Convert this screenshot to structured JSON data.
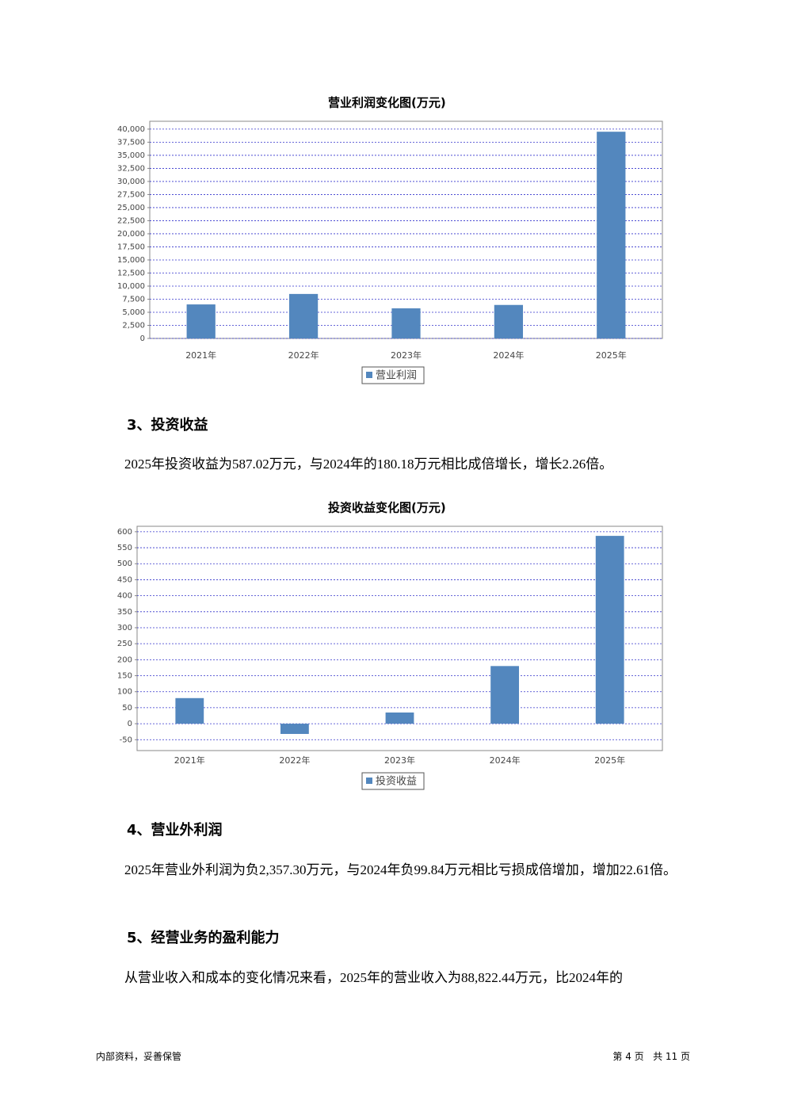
{
  "chart_data": [
    {
      "type": "bar",
      "title": "营业利润变化图(万元)",
      "categories": [
        "2021年",
        "2022年",
        "2023年",
        "2024年",
        "2025年"
      ],
      "series": [
        {
          "name": "营业利润",
          "color": "#5387be",
          "values": [
            6500,
            8500,
            5750,
            6400,
            39500
          ]
        }
      ],
      "ylim": [
        0,
        41500
      ],
      "yticks": [
        0,
        {
          "value": 2500,
          "label": "2,500"
        },
        {
          "value": 5000,
          "label": "5,000"
        },
        {
          "value": 7500,
          "label": "7,500"
        },
        {
          "value": 10000,
          "label": "10,000"
        },
        {
          "value": 12500,
          "label": "12,500"
        },
        {
          "value": 15000,
          "label": "15,000"
        },
        {
          "value": 17500,
          "label": "17,500"
        },
        {
          "value": 20000,
          "label": "20,000"
        },
        {
          "value": 22500,
          "label": "22,500"
        },
        {
          "value": 25000,
          "label": "25,000"
        },
        {
          "value": 27500,
          "label": "27,500"
        },
        {
          "value": 30000,
          "label": "30,000"
        },
        {
          "value": 32500,
          "label": "32,500"
        },
        {
          "value": 35000,
          "label": "35,000"
        },
        {
          "value": 37500,
          "label": "37,500"
        },
        {
          "value": 40000,
          "label": "40,000"
        }
      ],
      "grid": true,
      "legend": "bottom"
    },
    {
      "type": "bar",
      "title": "投资收益变化图(万元)",
      "categories": [
        "2021年",
        "2022年",
        "2023年",
        "2024年",
        "2025年"
      ],
      "series": [
        {
          "name": "投资收益",
          "color": "#5387be",
          "values": [
            80,
            -32,
            35,
            180.18,
            587.02
          ]
        }
      ],
      "ylim": [
        -84,
        617
      ],
      "yticks": [
        -50,
        0,
        50,
        100,
        150,
        200,
        250,
        300,
        350,
        400,
        450,
        500,
        550,
        600
      ],
      "grid": true,
      "legend": "bottom"
    }
  ],
  "document": {
    "headings": [
      "3、投资收益",
      "4、营业外利润",
      "5、经营业务的盈利能力"
    ],
    "paragraphs": [
      "2025年投资收益为587.02万元，与2024年的180.18万元相比成倍增长，增长2.26倍。",
      "2025年营业外利润为负2,357.30万元，与2024年负99.84万元相比亏损成倍增加，增加22.61倍。",
      "从营业收入和成本的变化情况来看，2025年的营业收入为88,822.44万元，比2024年的"
    ]
  },
  "footer": {
    "left": "内部资料，妥善保管",
    "right": "第 4 页   共 11 页"
  }
}
